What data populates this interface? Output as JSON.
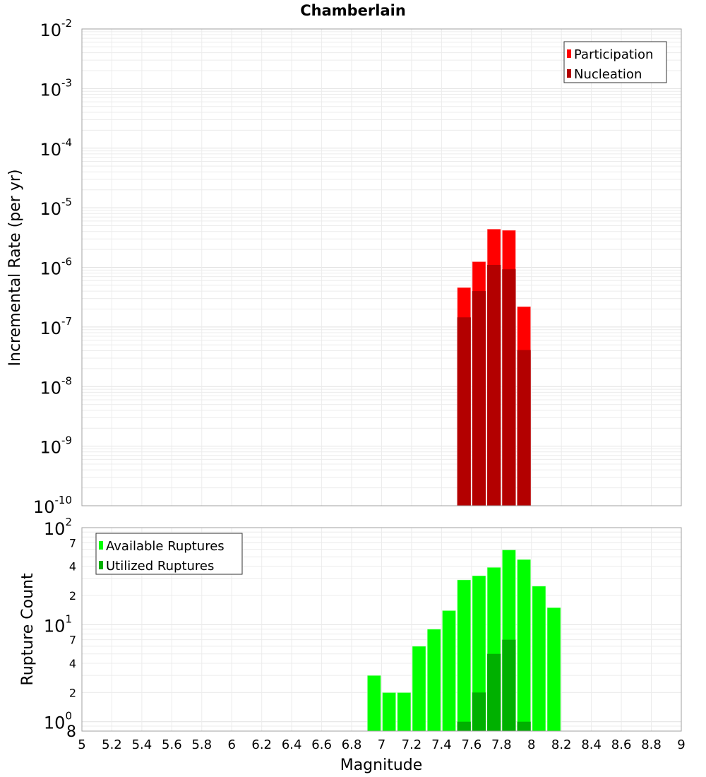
{
  "chart_data": [
    {
      "type": "bar",
      "title": "Chamberlain",
      "xlabel": "Magnitude",
      "ylabel": "Incremental Rate (per yr)",
      "yscale": "log",
      "ylim": [
        1e-10,
        0.01
      ],
      "xlim": [
        5,
        9
      ],
      "grid": true,
      "legend_position": "top-right",
      "y_tick_labels": [
        {
          "base": "10",
          "exp": "-2",
          "value": 0.01
        },
        {
          "base": "10",
          "exp": "-3",
          "value": 0.001
        },
        {
          "base": "10",
          "exp": "-4",
          "value": 0.0001
        },
        {
          "base": "10",
          "exp": "-5",
          "value": 1e-05
        },
        {
          "base": "10",
          "exp": "-6",
          "value": 1e-06
        },
        {
          "base": "10",
          "exp": "-7",
          "value": 1e-07
        },
        {
          "base": "10",
          "exp": "-8",
          "value": 1e-08
        },
        {
          "base": "10",
          "exp": "-9",
          "value": 1e-09
        },
        {
          "base": "10",
          "exp": "-10",
          "value": 1e-10
        }
      ],
      "x": [
        7.55,
        7.65,
        7.75,
        7.85,
        7.95
      ],
      "bin_width": 0.1,
      "series": [
        {
          "name": "Participation",
          "color": "#ff0000",
          "values": [
            4.6e-07,
            1.25e-06,
            4.4e-06,
            4.2e-06,
            2.2e-07
          ]
        },
        {
          "name": "Nucleation",
          "color": "#b30000",
          "values": [
            1.45e-07,
            4e-07,
            1.1e-06,
            9.3e-07,
            4.1e-08
          ]
        }
      ]
    },
    {
      "type": "bar",
      "xlabel": "Magnitude",
      "ylabel": "Rupture Count",
      "yscale": "log",
      "ylim": [
        0.8,
        100
      ],
      "xlim": [
        5,
        9
      ],
      "grid": true,
      "legend_position": "top-left",
      "y_tick_labels": [
        {
          "base": "10",
          "exp": "2",
          "value": 100
        },
        {
          "base": "7",
          "exp": "",
          "value": 70
        },
        {
          "base": "4",
          "exp": "",
          "value": 40
        },
        {
          "base": "2",
          "exp": "",
          "value": 20
        },
        {
          "base": "10",
          "exp": "1",
          "value": 10
        },
        {
          "base": "7",
          "exp": "",
          "value": 7
        },
        {
          "base": "4",
          "exp": "",
          "value": 4
        },
        {
          "base": "2",
          "exp": "",
          "value": 2
        },
        {
          "base": "10",
          "exp": "0",
          "value": 1
        },
        {
          "base": "8",
          "exp": "",
          "value": 0.8
        }
      ],
      "x_tick_labels": [
        "5",
        "5.2",
        "5.4",
        "5.6",
        "5.8",
        "6",
        "6.2",
        "6.4",
        "6.6",
        "6.8",
        "7",
        "7.2",
        "7.4",
        "7.6",
        "7.8",
        "8",
        "8.2",
        "8.4",
        "8.6",
        "8.8",
        "9"
      ],
      "x": [
        6.95,
        7.05,
        7.15,
        7.25,
        7.35,
        7.45,
        7.55,
        7.65,
        7.75,
        7.85,
        7.95,
        8.05,
        8.15
      ],
      "bin_width": 0.1,
      "series": [
        {
          "name": "Available Ruptures",
          "color": "#00ff00",
          "values": [
            3,
            2,
            2,
            6,
            9,
            14,
            29,
            32,
            39,
            59,
            47,
            25,
            15
          ]
        },
        {
          "name": "Utilized Ruptures",
          "color": "#00b000",
          "values": [
            0,
            0,
            0,
            0,
            0,
            0,
            1,
            2,
            5,
            7,
            1,
            0,
            0
          ]
        }
      ]
    }
  ]
}
